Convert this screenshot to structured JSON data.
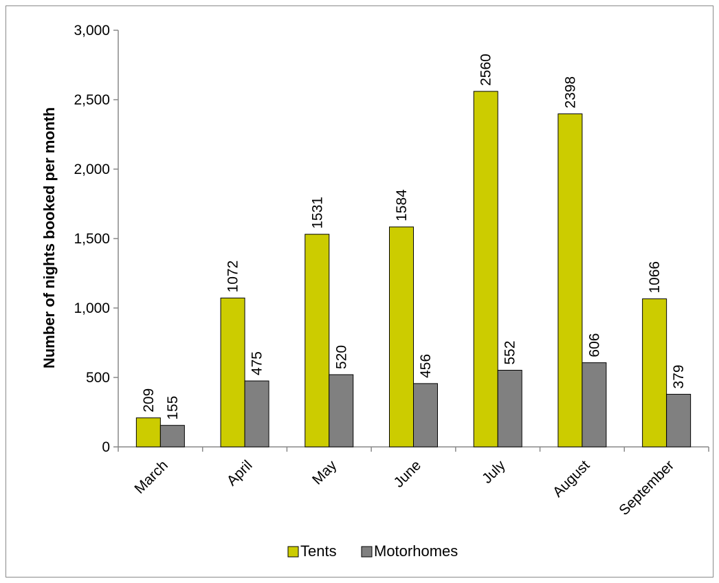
{
  "chart_data": {
    "type": "bar",
    "title": "",
    "xlabel": "",
    "ylabel": "Number of nights booked per month",
    "ylim": [
      0,
      3000
    ],
    "yticks": [
      0,
      500,
      1000,
      1500,
      2000,
      2500,
      3000
    ],
    "ytick_labels": [
      "0",
      "500",
      "1,000",
      "1,500",
      "2,000",
      "2,500",
      "3,000"
    ],
    "grid": false,
    "legend_position": "bottom",
    "categories": [
      "March",
      "April",
      "May",
      "June",
      "July",
      "August",
      "September"
    ],
    "series": [
      {
        "name": "Tents",
        "color": "#cccc00",
        "values": [
          209,
          1072,
          1531,
          1584,
          2560,
          2398,
          1066
        ]
      },
      {
        "name": "Motorhomes",
        "color": "#808080",
        "values": [
          155,
          475,
          520,
          456,
          552,
          606,
          379
        ]
      }
    ]
  }
}
